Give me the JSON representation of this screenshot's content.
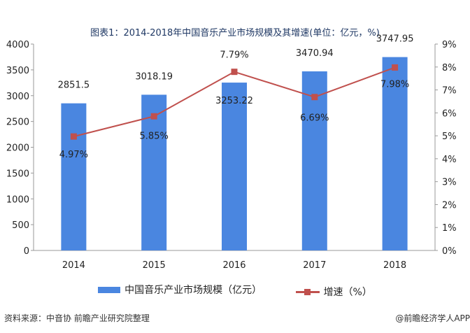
{
  "title": "图表1：2014-2018年中国音乐产业市场规模及其增速(单位：亿元，%)",
  "chart_data": {
    "type": "bar+line",
    "categories": [
      "2014",
      "2015",
      "2016",
      "2017",
      "2018"
    ],
    "series": [
      {
        "name": "中国音乐产业市场规模（亿元）",
        "type": "bar",
        "axis": "left",
        "values": [
          2851.5,
          3018.19,
          3253.22,
          3470.94,
          3747.95
        ],
        "labels": [
          "2851.5",
          "3018.19",
          "3253.22",
          "3470.94",
          "3747.95"
        ],
        "color": "#4a86e0"
      },
      {
        "name": "增速（%）",
        "type": "line",
        "axis": "right",
        "values": [
          4.97,
          5.85,
          7.79,
          6.69,
          7.98
        ],
        "labels": [
          "4.97%",
          "5.85%",
          "7.79%",
          "6.69%",
          "7.98%"
        ],
        "color": "#c0504d"
      }
    ],
    "left_axis": {
      "ylim": [
        0,
        4000
      ],
      "ticks": [
        "0",
        "500",
        "1000",
        "1500",
        "2000",
        "2500",
        "3000",
        "3500",
        "4000"
      ]
    },
    "right_axis": {
      "ylim": [
        0,
        9
      ],
      "ticks": [
        "0%",
        "1%",
        "2%",
        "3%",
        "4%",
        "5%",
        "6%",
        "7%",
        "8%",
        "9%"
      ]
    },
    "grid": false,
    "legend": "bottom"
  },
  "source": "资料来源：中音协 前瞻产业研究院整理",
  "credit": "@前瞻经济学人APP"
}
